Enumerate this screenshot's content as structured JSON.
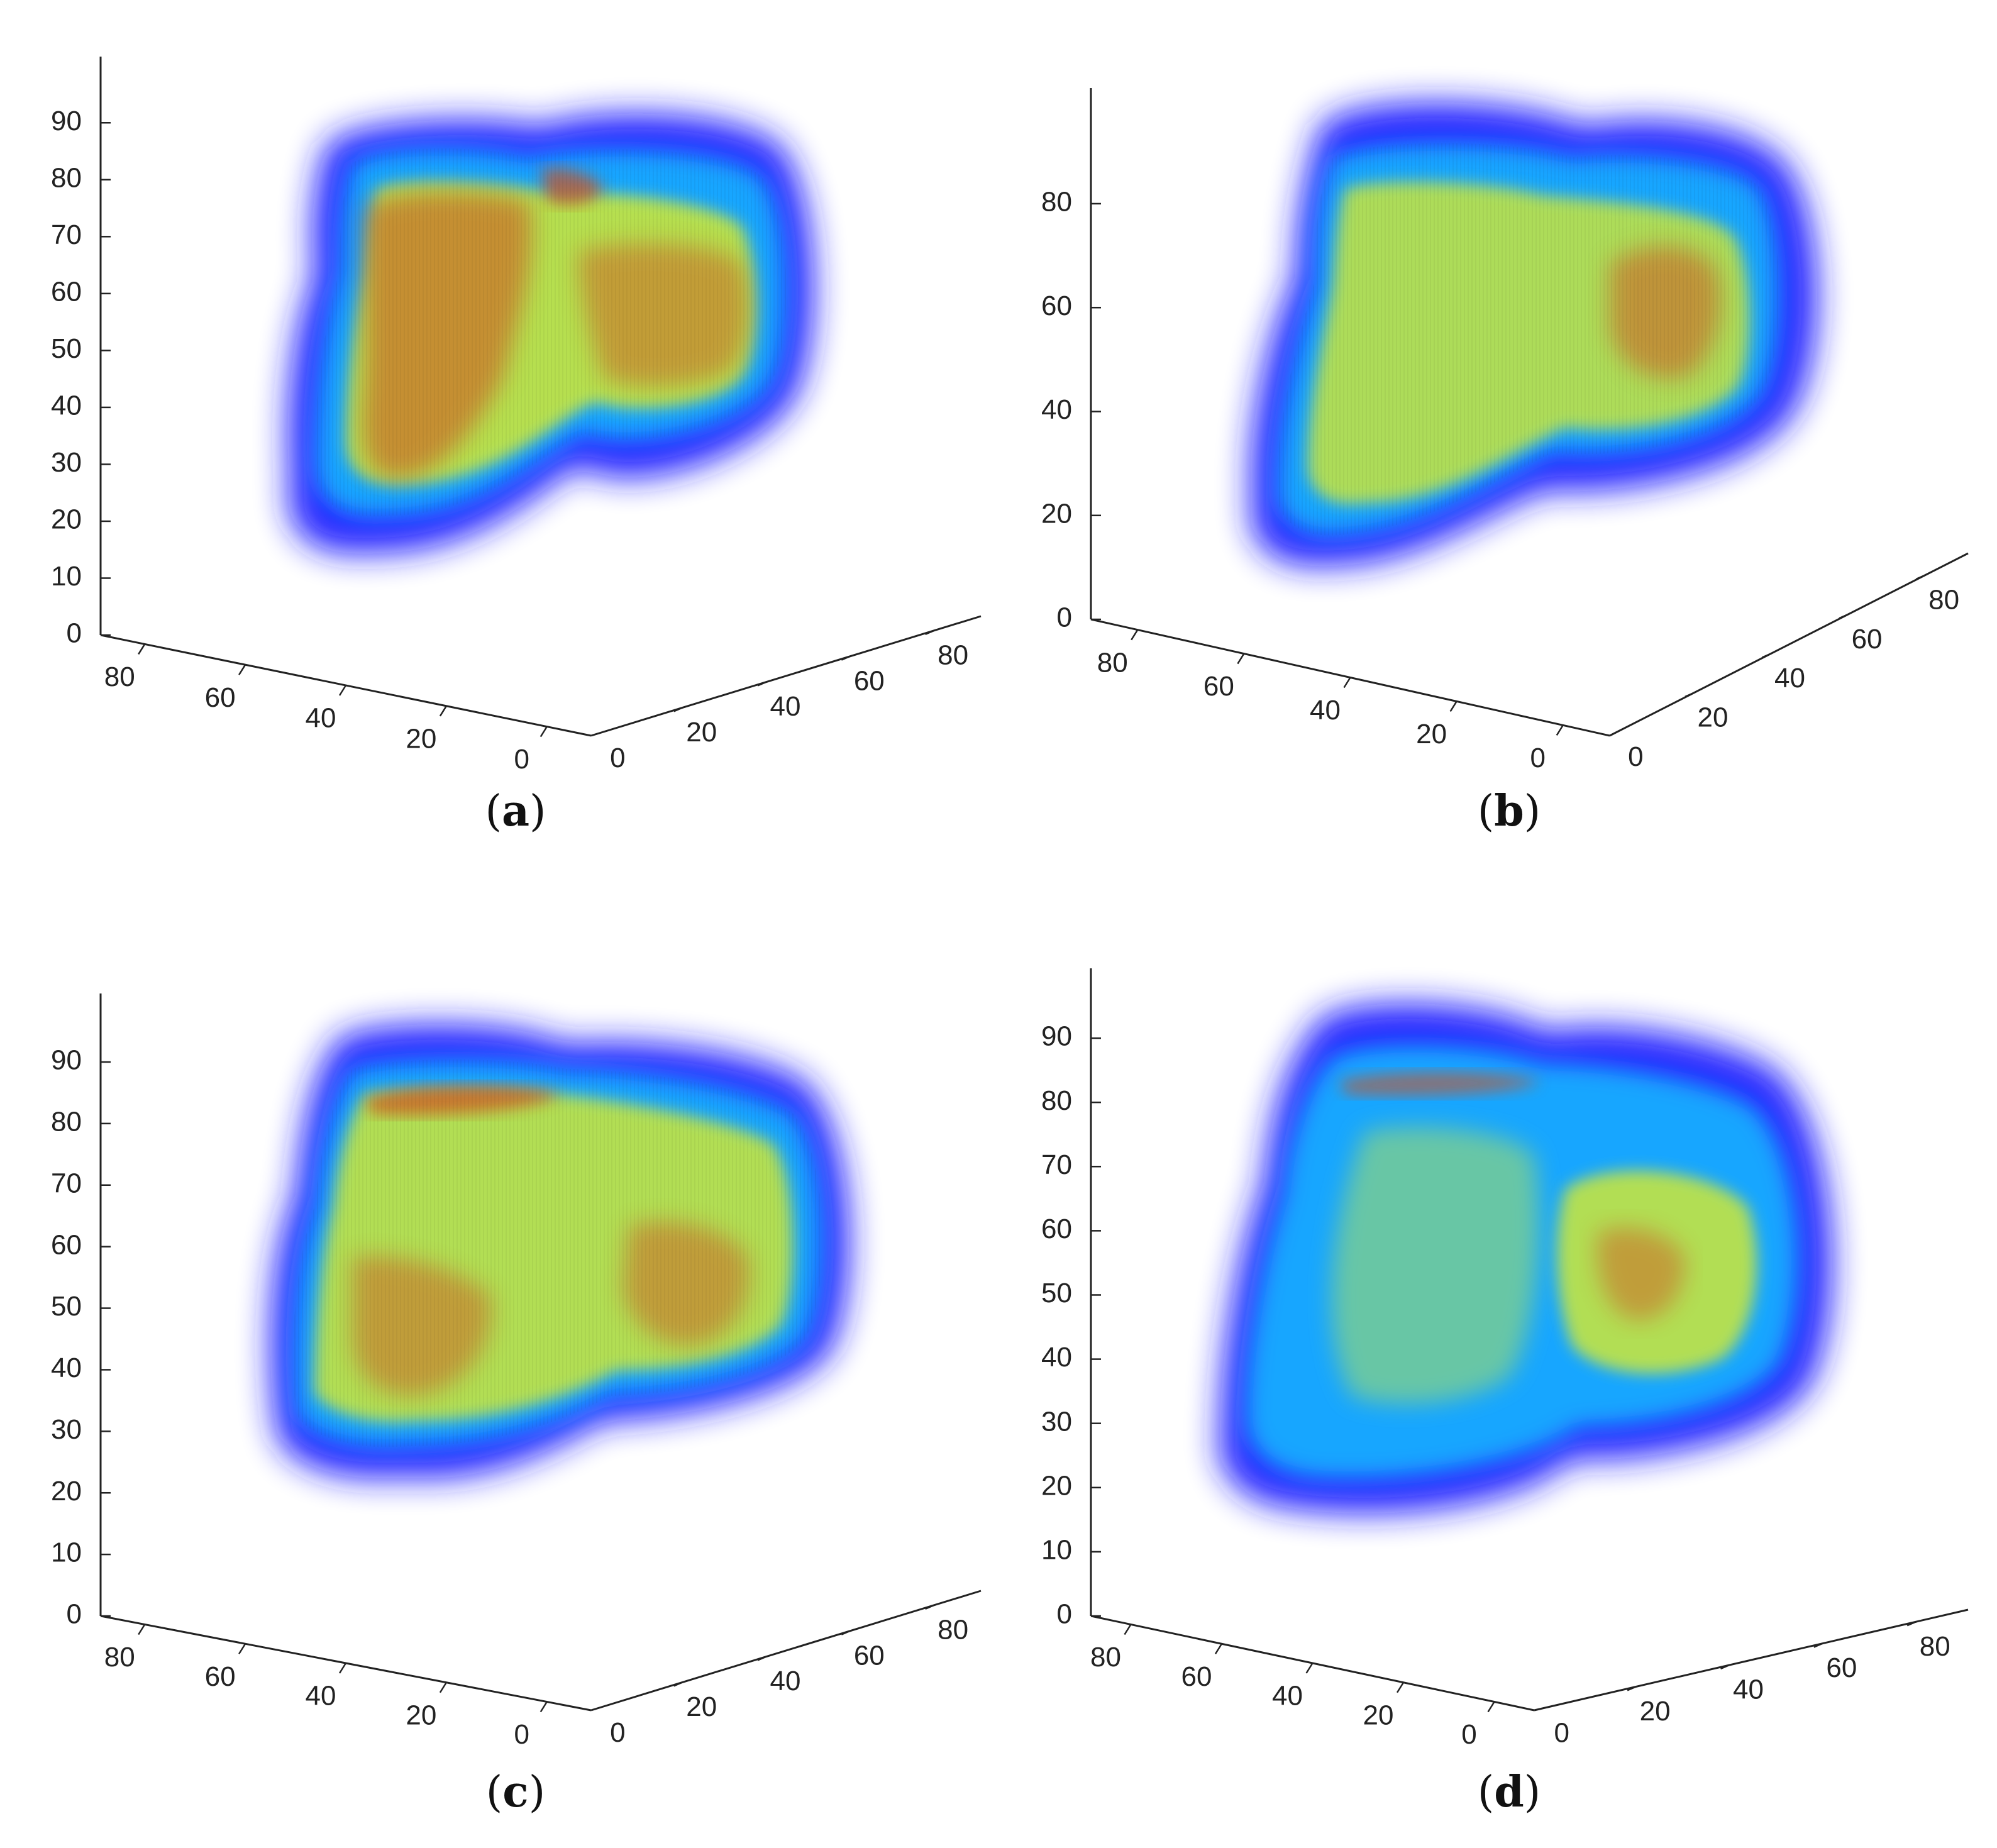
{
  "chart_data": [
    {
      "type": "other",
      "panel": "(a)",
      "z_ticks": [
        "0",
        "10",
        "20",
        "30",
        "40",
        "50",
        "60",
        "70",
        "80",
        "90"
      ],
      "x_ticks": [
        "80",
        "60",
        "40",
        "20",
        "0"
      ],
      "y_ticks": [
        "0",
        "20",
        "40",
        "60",
        "80"
      ],
      "zlim": [
        0,
        95
      ]
    },
    {
      "type": "other",
      "panel": "(b)",
      "z_ticks": [
        "0",
        "20",
        "40",
        "60",
        "80"
      ],
      "x_ticks": [
        "80",
        "60",
        "40",
        "20",
        "0"
      ],
      "y_ticks": [
        "0",
        "20",
        "40",
        "60",
        "80"
      ],
      "zlim": [
        0,
        95
      ]
    },
    {
      "type": "other",
      "panel": "(c)",
      "z_ticks": [
        "0",
        "10",
        "20",
        "30",
        "40",
        "50",
        "60",
        "70",
        "80",
        "90"
      ],
      "x_ticks": [
        "80",
        "60",
        "40",
        "20",
        "0"
      ],
      "y_ticks": [
        "0",
        "20",
        "40",
        "60",
        "80"
      ],
      "zlim": [
        0,
        95
      ]
    },
    {
      "type": "other",
      "panel": "(d)",
      "z_ticks": [
        "0",
        "10",
        "20",
        "30",
        "40",
        "50",
        "60",
        "70",
        "80",
        "90"
      ],
      "x_ticks": [
        "80",
        "60",
        "40",
        "20",
        "0"
      ],
      "y_ticks": [
        "0",
        "20",
        "40",
        "60",
        "80"
      ],
      "zlim": [
        0,
        95
      ]
    }
  ],
  "captions": {
    "a": "a",
    "b": "b",
    "c": "c",
    "d": "d"
  },
  "colors": {
    "volume_outer": "#1a1aff",
    "volume_mid": "#19b4ff",
    "volume_inner": "#c8e63c",
    "volume_core": "#d2501e",
    "axis": "#222222"
  }
}
